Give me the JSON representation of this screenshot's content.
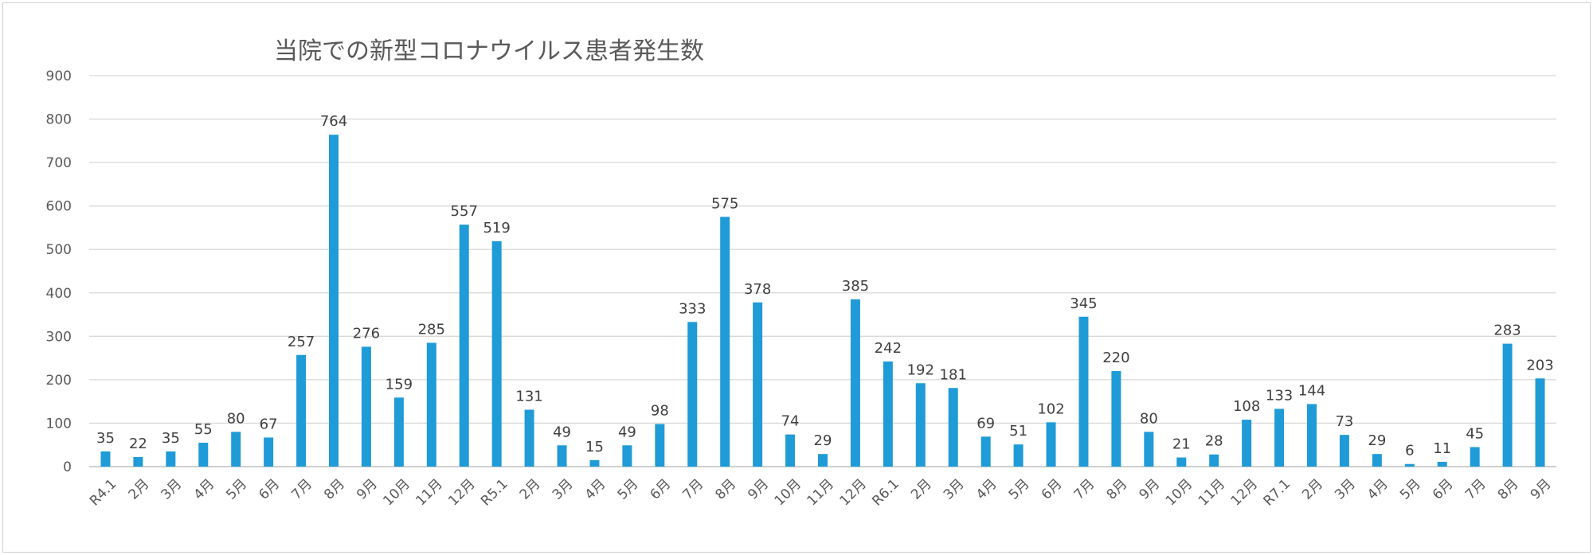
{
  "chart_data": {
    "type": "bar",
    "title": "当院での新型コロナウイルス患者発生数",
    "xlabel": "",
    "ylabel": "",
    "ylim": [
      0,
      900
    ],
    "yticks": [
      0,
      100,
      200,
      300,
      400,
      500,
      600,
      700,
      800,
      900
    ],
    "grid": true,
    "legend": "none",
    "bar_color": "#1f9bd7",
    "categories": [
      "R4.1",
      "2月",
      "3月",
      "4月",
      "5月",
      "6月",
      "7月",
      "8月",
      "9月",
      "10月",
      "11月",
      "12月",
      "R5.1",
      "2月",
      "3月",
      "4月",
      "5月",
      "6月",
      "7月",
      "8月",
      "9月",
      "10月",
      "11月",
      "12月",
      "R6.1",
      "2月",
      "3月",
      "4月",
      "5月",
      "6月",
      "7月",
      "8月",
      "9月",
      "10月",
      "11月",
      "12月",
      "R7.1",
      "2月",
      "3月",
      "4月",
      "5月",
      "6月",
      "7月",
      "8月",
      "9月"
    ],
    "values": [
      35,
      22,
      35,
      55,
      80,
      67,
      257,
      764,
      276,
      159,
      285,
      557,
      519,
      131,
      49,
      15,
      49,
      98,
      333,
      575,
      378,
      74,
      29,
      385,
      242,
      192,
      181,
      69,
      51,
      102,
      345,
      220,
      80,
      21,
      28,
      108,
      133,
      144,
      73,
      29,
      6,
      11,
      45,
      283,
      203
    ]
  }
}
